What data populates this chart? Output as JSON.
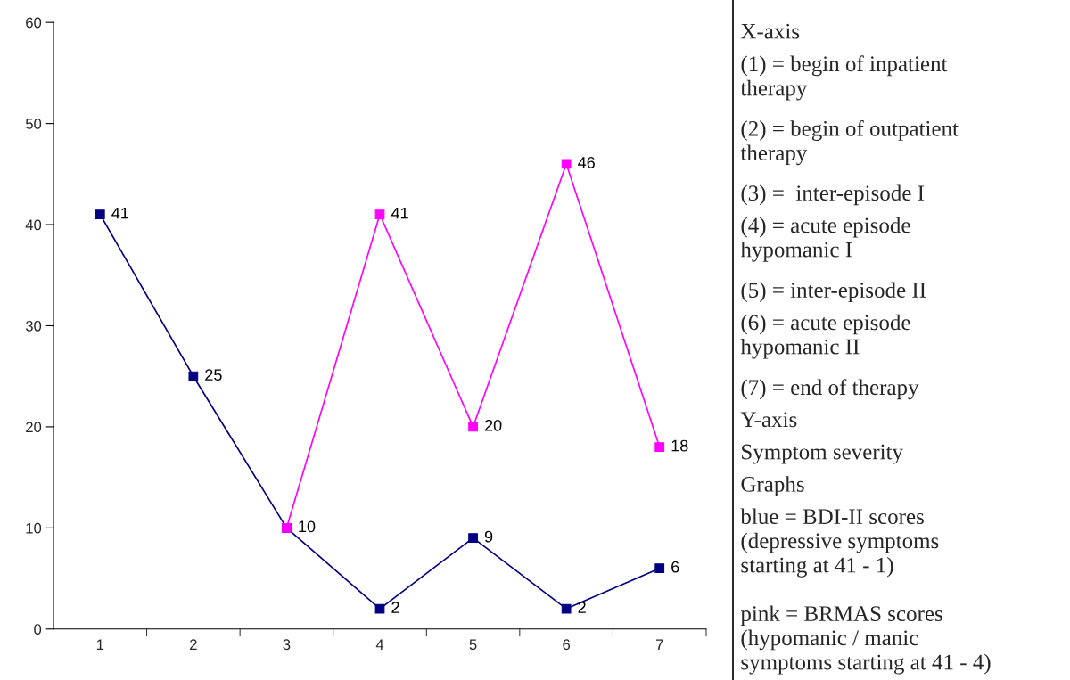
{
  "chart_data": {
    "type": "line",
    "categories": [
      "1",
      "2",
      "3",
      "4",
      "5",
      "6",
      "7"
    ],
    "series": [
      {
        "color": "#000080",
        "values": [
          41,
          25,
          10,
          2,
          9,
          2,
          6
        ],
        "value_labels": [
          "41",
          "25",
          "10",
          "2",
          "9",
          "2",
          "6"
        ]
      },
      {
        "color": "#ff00ff",
        "values": [
          null,
          null,
          10,
          41,
          20,
          46,
          18
        ],
        "value_labels": [
          null,
          null,
          null,
          "41",
          "20",
          "46",
          "18"
        ]
      }
    ],
    "ylim": [
      0,
      60
    ],
    "yticks": [
      0,
      10,
      20,
      30,
      40,
      50,
      60
    ],
    "grid": false,
    "legend": false,
    "marker": "square",
    "line_style": "solid",
    "annotations": [
      "X-axis",
      "(1) = begin of inpatient\ntherapy",
      "(2) = begin of outpatient\ntherapy",
      "(3) =  inter-episode I",
      "(4) = acute episode\nhypomanic I",
      "(5) = inter-episode II",
      "(6) = acute episode\nhypomanic II",
      "(7) = end of therapy",
      "Y-axis",
      "Symptom severity",
      "Graphs",
      "blue = BDI-II scores\n(depressive symptoms\nstarting at 41 - 1)",
      "pink = BRMAS scores\n(hypomanic / manic\nsymptoms starting at 41 - 4)"
    ]
  }
}
